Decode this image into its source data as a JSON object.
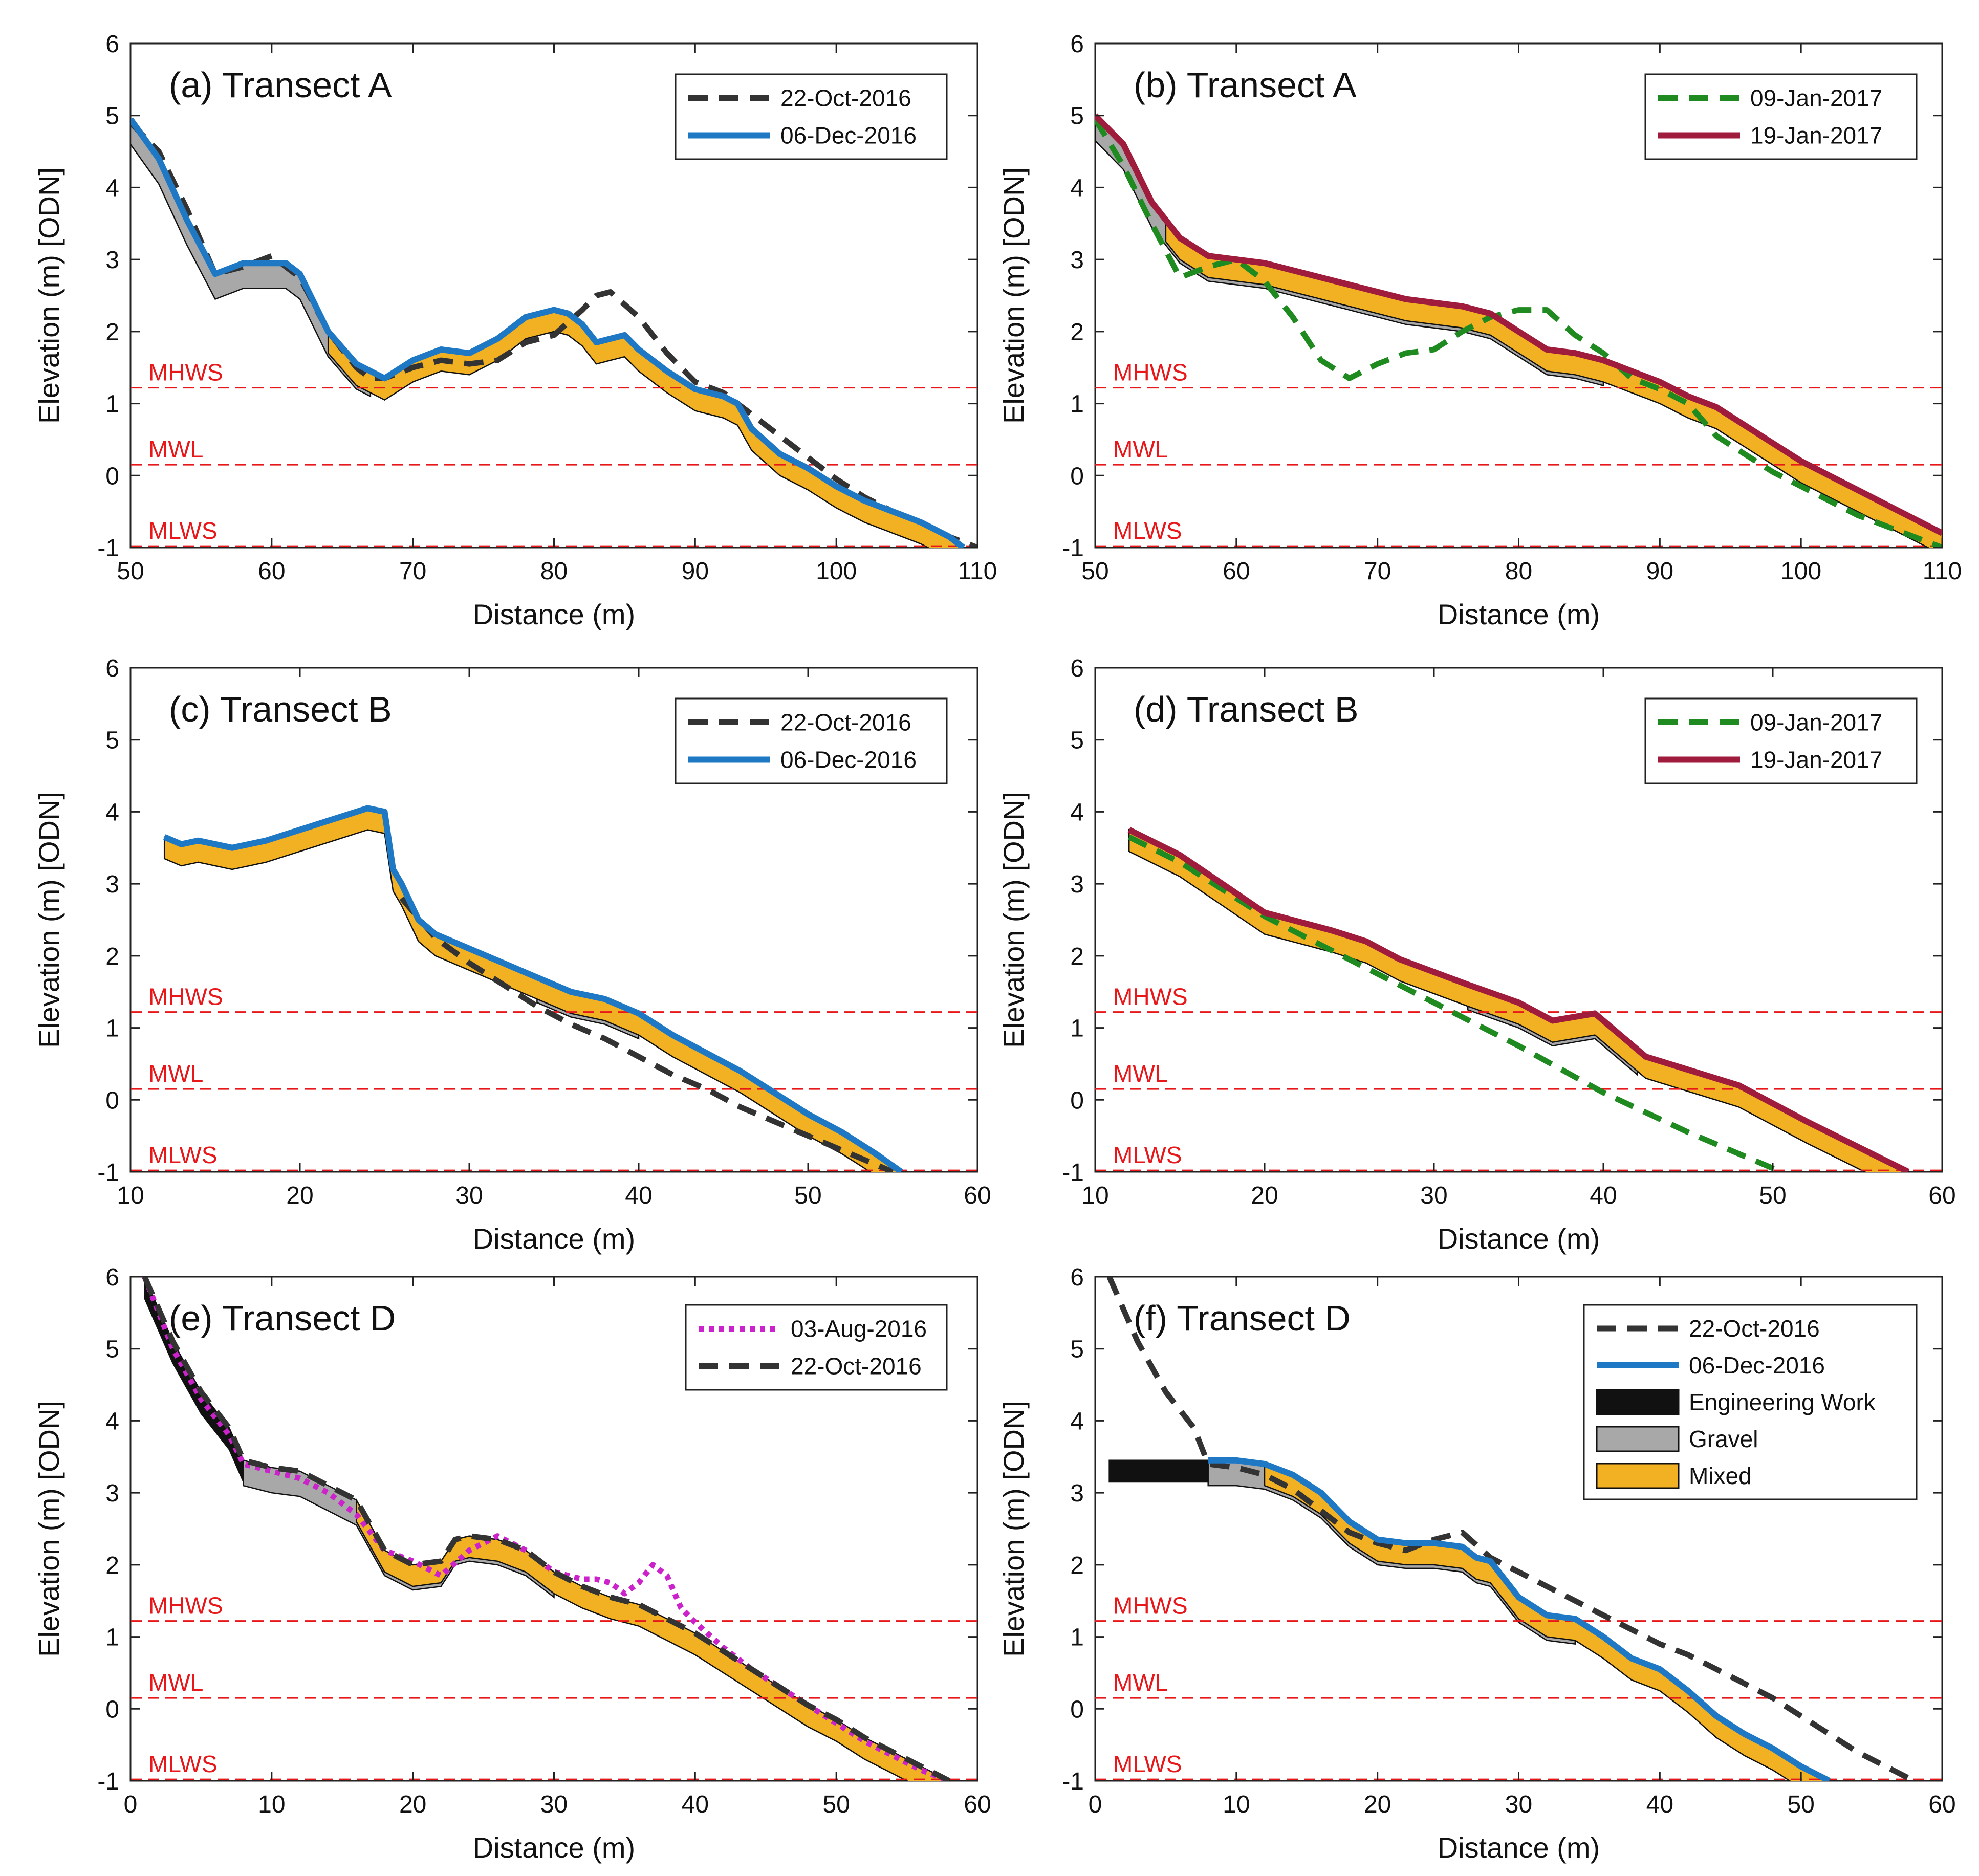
{
  "figure": {
    "ylabel": "Elevation (m) [ODN]",
    "xlabel": "Distance (m)"
  },
  "colors": {
    "dates": {
      "03-Aug-2016": "#cc22cc",
      "22-Oct-2016": "#333333",
      "06-Dec-2016": "#1f78c4",
      "09-Jan-2017": "#1f8a1f",
      "19-Jan-2017": "#a01c3c"
    },
    "gravel": "#a8a8a8",
    "mixed": "#f2b023",
    "engineering": "#111111",
    "tide": "#e8171a"
  },
  "tide_levels": [
    {
      "name": "MHWS",
      "value": 1.22
    },
    {
      "name": "MWL",
      "value": 0.15
    },
    {
      "name": "MLWS",
      "value": -0.98
    }
  ],
  "chart_data": [
    {
      "id": "a",
      "type": "line",
      "title": "(a) Transect A",
      "xlabel": "Distance (m)",
      "ylabel": "Elevation (m) [ODN]",
      "xlim": [
        50,
        110
      ],
      "ylim": [
        -1,
        6
      ],
      "xticks": [
        50,
        60,
        70,
        80,
        90,
        100,
        110
      ],
      "yticks": [
        -1,
        0,
        1,
        2,
        3,
        4,
        5,
        6
      ],
      "legend": [
        "22-Oct-2016",
        "06-Dec-2016"
      ],
      "series": [
        {
          "name": "22-Oct-2016",
          "style": "dashed",
          "x": [
            50,
            52,
            54,
            56,
            58,
            60,
            62,
            64,
            66,
            67,
            68,
            70,
            72,
            74,
            76,
            78,
            80,
            82,
            83,
            84,
            86,
            88,
            90,
            92,
            94,
            96,
            98,
            100,
            102,
            104,
            106,
            108,
            110
          ],
          "y": [
            4.9,
            4.5,
            3.7,
            2.8,
            2.9,
            3.05,
            2.75,
            2.0,
            1.5,
            1.35,
            1.35,
            1.5,
            1.6,
            1.55,
            1.6,
            1.85,
            1.95,
            2.3,
            2.5,
            2.55,
            2.2,
            1.7,
            1.3,
            1.15,
            0.85,
            0.55,
            0.25,
            -0.05,
            -0.3,
            -0.5,
            -0.65,
            -0.85,
            -1.0
          ]
        },
        {
          "name": "06-Dec-2016",
          "style": "solid",
          "x": [
            50,
            52,
            54,
            56,
            58,
            60,
            61,
            62,
            64,
            66,
            68,
            70,
            72,
            74,
            76,
            78,
            80,
            81,
            82,
            83,
            84,
            85,
            86,
            88,
            90,
            92,
            93,
            94,
            96,
            98,
            100,
            102,
            104,
            106,
            108,
            109
          ],
          "y": [
            4.95,
            4.4,
            3.55,
            2.8,
            2.95,
            2.95,
            2.95,
            2.8,
            2.0,
            1.55,
            1.35,
            1.6,
            1.75,
            1.7,
            1.9,
            2.2,
            2.3,
            2.25,
            2.1,
            1.85,
            1.9,
            1.95,
            1.75,
            1.45,
            1.2,
            1.1,
            1.0,
            0.65,
            0.3,
            0.1,
            -0.15,
            -0.35,
            -0.5,
            -0.65,
            -0.85,
            -1.0
          ]
        }
      ],
      "layers": [
        {
          "name": "Gravel",
          "thickness": 0.35,
          "x_start": 50,
          "x_end": 67
        },
        {
          "name": "Mixed",
          "thickness": 0.3,
          "x_start": 64,
          "x_end": 109
        }
      ]
    },
    {
      "id": "b",
      "type": "line",
      "title": "(b) Transect A",
      "xlabel": "Distance (m)",
      "ylabel": "Elevation (m) [ODN]",
      "xlim": [
        50,
        110
      ],
      "ylim": [
        -1,
        6
      ],
      "xticks": [
        50,
        60,
        70,
        80,
        90,
        100,
        110
      ],
      "yticks": [
        -1,
        0,
        1,
        2,
        3,
        4,
        5,
        6
      ],
      "legend": [
        "09-Jan-2017",
        "19-Jan-2017"
      ],
      "series": [
        {
          "name": "09-Jan-2017",
          "style": "dashed",
          "x": [
            50,
            52,
            54,
            56,
            58,
            60,
            62,
            64,
            66,
            68,
            70,
            72,
            74,
            76,
            78,
            80,
            82,
            84,
            86,
            88,
            90,
            92,
            94,
            96,
            98,
            100,
            102,
            104,
            106,
            108,
            110
          ],
          "y": [
            4.95,
            4.3,
            3.5,
            2.75,
            2.9,
            3.0,
            2.7,
            2.2,
            1.6,
            1.35,
            1.55,
            1.7,
            1.75,
            2.0,
            2.2,
            2.3,
            2.3,
            1.95,
            1.7,
            1.35,
            1.2,
            1.0,
            0.55,
            0.3,
            0.05,
            -0.15,
            -0.35,
            -0.55,
            -0.7,
            -0.85,
            -1.0
          ]
        },
        {
          "name": "19-Jan-2017",
          "style": "solid",
          "x": [
            50,
            52,
            54,
            56,
            58,
            60,
            62,
            64,
            66,
            68,
            70,
            72,
            74,
            76,
            78,
            80,
            82,
            84,
            86,
            88,
            90,
            92,
            94,
            96,
            98,
            100,
            102,
            104,
            106,
            108,
            110
          ],
          "y": [
            5.0,
            4.6,
            3.8,
            3.3,
            3.05,
            3.0,
            2.95,
            2.85,
            2.75,
            2.65,
            2.55,
            2.45,
            2.4,
            2.35,
            2.25,
            2.0,
            1.75,
            1.7,
            1.6,
            1.45,
            1.3,
            1.1,
            0.95,
            0.7,
            0.45,
            0.2,
            0.0,
            -0.2,
            -0.4,
            -0.6,
            -0.8
          ]
        }
      ],
      "layers": [
        {
          "name": "Gravel",
          "thickness": 0.35,
          "x_start": 50,
          "x_end": 86
        },
        {
          "name": "Mixed",
          "thickness": 0.3,
          "x_start": 55,
          "x_end": 110
        }
      ]
    },
    {
      "id": "c",
      "type": "line",
      "title": "(c) Transect B",
      "xlabel": "Distance (m)",
      "ylabel": "Elevation (m) [ODN]",
      "xlim": [
        10,
        60
      ],
      "ylim": [
        -1,
        6
      ],
      "xticks": [
        10,
        20,
        30,
        40,
        50,
        60
      ],
      "yticks": [
        -1,
        0,
        1,
        2,
        3,
        4,
        5,
        6
      ],
      "legend": [
        "22-Oct-2016",
        "06-Dec-2016"
      ],
      "series": [
        {
          "name": "22-Oct-2016",
          "style": "dashed",
          "x": [
            26,
            28,
            30,
            32,
            34,
            36,
            38,
            40,
            42,
            44,
            46,
            48,
            50,
            52,
            54,
            55
          ],
          "y": [
            2.8,
            2.25,
            1.9,
            1.6,
            1.3,
            1.05,
            0.85,
            0.6,
            0.35,
            0.15,
            -0.1,
            -0.3,
            -0.5,
            -0.7,
            -0.9,
            -1.0
          ]
        },
        {
          "name": "06-Dec-2016",
          "style": "solid",
          "x": [
            12,
            13,
            14,
            15,
            16,
            18,
            20,
            22,
            24,
            25,
            25.5,
            26,
            27,
            28,
            30,
            32,
            34,
            36,
            38,
            39,
            40,
            42,
            44,
            46,
            48,
            50,
            52,
            54,
            55.5
          ],
          "y": [
            3.65,
            3.55,
            3.6,
            3.55,
            3.5,
            3.6,
            3.75,
            3.9,
            4.05,
            4.0,
            3.2,
            3.0,
            2.5,
            2.3,
            2.1,
            1.9,
            1.7,
            1.5,
            1.4,
            1.3,
            1.2,
            0.9,
            0.65,
            0.4,
            0.1,
            -0.2,
            -0.45,
            -0.75,
            -1.0
          ]
        }
      ],
      "layers": [
        {
          "name": "Gravel",
          "thickness": 0.35,
          "x_start": 34,
          "x_end": 40
        },
        {
          "name": "Mixed",
          "thickness": 0.3,
          "x_start": 12,
          "x_end": 55.5
        }
      ]
    },
    {
      "id": "d",
      "type": "line",
      "title": "(d) Transect B",
      "xlabel": "Distance (m)",
      "ylabel": "Elevation (m) [ODN]",
      "xlim": [
        10,
        60
      ],
      "ylim": [
        -1,
        6
      ],
      "xticks": [
        10,
        20,
        30,
        40,
        50,
        60
      ],
      "yticks": [
        -1,
        0,
        1,
        2,
        3,
        4,
        5,
        6
      ],
      "legend": [
        "09-Jan-2017",
        "19-Jan-2017"
      ],
      "series": [
        {
          "name": "09-Jan-2017",
          "style": "dashed",
          "x": [
            12,
            15,
            20,
            25,
            30,
            35,
            40,
            45,
            50.5
          ],
          "y": [
            3.65,
            3.3,
            2.55,
            1.95,
            1.35,
            0.75,
            0.1,
            -0.45,
            -1.0
          ]
        },
        {
          "name": "19-Jan-2017",
          "style": "solid",
          "x": [
            12,
            15,
            20,
            24,
            26,
            28,
            32,
            35,
            37,
            39.5,
            42.5,
            48,
            52,
            55,
            58
          ],
          "y": [
            3.75,
            3.4,
            2.6,
            2.35,
            2.2,
            1.95,
            1.6,
            1.35,
            1.1,
            1.2,
            0.6,
            0.2,
            -0.3,
            -0.65,
            -1.0
          ]
        }
      ],
      "layers": [
        {
          "name": "Gravel",
          "thickness": 0.35,
          "x_start": 32,
          "x_end": 42
        },
        {
          "name": "Mixed",
          "thickness": 0.3,
          "x_start": 12,
          "x_end": 58
        }
      ]
    },
    {
      "id": "e",
      "type": "line",
      "title": "(e) Transect D",
      "xlabel": "Distance (m)",
      "ylabel": "Elevation (m) [ODN]",
      "xlim": [
        0,
        60
      ],
      "ylim": [
        -1,
        6
      ],
      "xticks": [
        0,
        10,
        20,
        30,
        40,
        50,
        60
      ],
      "yticks": [
        -1,
        0,
        1,
        2,
        3,
        4,
        5,
        6
      ],
      "legend": [
        "03-Aug-2016",
        "22-Oct-2016"
      ],
      "series": [
        {
          "name": "03-Aug-2016",
          "style": "dotted",
          "x": [
            1,
            3,
            5,
            7,
            8,
            10,
            12,
            14,
            16,
            18,
            20,
            22,
            24,
            26,
            28,
            30,
            32,
            33,
            34,
            35,
            36,
            37,
            38,
            39,
            40,
            42,
            44,
            46,
            48,
            50,
            52,
            54,
            56,
            58
          ],
          "y": [
            6.0,
            5.0,
            4.3,
            3.8,
            3.4,
            3.3,
            3.2,
            3.0,
            2.7,
            2.2,
            2.05,
            1.85,
            2.2,
            2.4,
            2.2,
            1.9,
            1.8,
            1.8,
            1.75,
            1.6,
            1.75,
            2.0,
            1.85,
            1.4,
            1.2,
            0.85,
            0.55,
            0.3,
            0.05,
            -0.2,
            -0.45,
            -0.65,
            -0.85,
            -1.0
          ]
        },
        {
          "name": "22-Oct-2016",
          "style": "dashed",
          "x": [
            1,
            3,
            5,
            7,
            8,
            10,
            12,
            14,
            16,
            18,
            20,
            22,
            23,
            24,
            26,
            28,
            30,
            32,
            34,
            36,
            38,
            40,
            42,
            44,
            46,
            48,
            50,
            52,
            54,
            56,
            58
          ],
          "y": [
            6.0,
            5.1,
            4.4,
            3.9,
            3.45,
            3.35,
            3.3,
            3.1,
            2.9,
            2.2,
            2.0,
            2.05,
            2.35,
            2.4,
            2.35,
            2.2,
            1.9,
            1.7,
            1.55,
            1.45,
            1.25,
            1.05,
            0.8,
            0.55,
            0.3,
            0.05,
            -0.15,
            -0.4,
            -0.6,
            -0.8,
            -1.0
          ]
        }
      ],
      "layers": [
        {
          "name": "Engineering Work",
          "thickness": 0.3,
          "x_start": 1,
          "x_end": 8
        },
        {
          "name": "Gravel",
          "thickness": 0.35,
          "x_start": 8,
          "x_end": 30
        },
        {
          "name": "Mixed",
          "thickness": 0.3,
          "x_start": 16,
          "x_end": 58
        }
      ]
    },
    {
      "id": "f",
      "type": "line",
      "title": "(f) Transect D",
      "xlabel": "Distance (m)",
      "ylabel": "Elevation (m) [ODN]",
      "xlim": [
        0,
        60
      ],
      "ylim": [
        -1,
        6
      ],
      "xticks": [
        0,
        10,
        20,
        30,
        40,
        50,
        60
      ],
      "yticks": [
        -1,
        0,
        1,
        2,
        3,
        4,
        5,
        6
      ],
      "legend": [
        "22-Oct-2016",
        "06-Dec-2016",
        "Engineering Work",
        "Gravel",
        "Mixed"
      ],
      "series": [
        {
          "name": "22-Oct-2016",
          "style": "dashed",
          "x": [
            1,
            3,
            5,
            7,
            8,
            10,
            12,
            14,
            16,
            18,
            20,
            22,
            24,
            26,
            28,
            30,
            32,
            34,
            36,
            38,
            40,
            42,
            44,
            46,
            48,
            50,
            52,
            54,
            56,
            58
          ],
          "y": [
            6.0,
            5.1,
            4.4,
            3.9,
            3.4,
            3.35,
            3.25,
            3.05,
            2.75,
            2.45,
            2.3,
            2.2,
            2.35,
            2.45,
            2.1,
            1.9,
            1.7,
            1.5,
            1.3,
            1.1,
            0.9,
            0.75,
            0.55,
            0.35,
            0.15,
            -0.1,
            -0.35,
            -0.6,
            -0.8,
            -1.0
          ]
        },
        {
          "name": "06-Dec-2016",
          "style": "solid",
          "x": [
            8,
            10,
            12,
            14,
            16,
            18,
            20,
            22,
            24,
            26,
            27,
            28,
            29,
            30,
            32,
            34,
            36,
            38,
            40,
            42,
            44,
            46,
            48,
            50,
            52
          ],
          "y": [
            3.45,
            3.45,
            3.4,
            3.25,
            3.0,
            2.6,
            2.35,
            2.3,
            2.3,
            2.25,
            2.1,
            2.05,
            1.8,
            1.55,
            1.3,
            1.25,
            1.0,
            0.7,
            0.55,
            0.25,
            -0.1,
            -0.35,
            -0.55,
            -0.8,
            -1.0
          ]
        }
      ],
      "layers": [
        {
          "name": "Engineering Work",
          "thickness": 0.3,
          "x_start": 1,
          "x_end": 8
        },
        {
          "name": "Gravel",
          "thickness": 0.35,
          "x_start": 8,
          "x_end": 34
        },
        {
          "name": "Mixed",
          "thickness": 0.3,
          "x_start": 12,
          "x_end": 52
        }
      ]
    }
  ]
}
